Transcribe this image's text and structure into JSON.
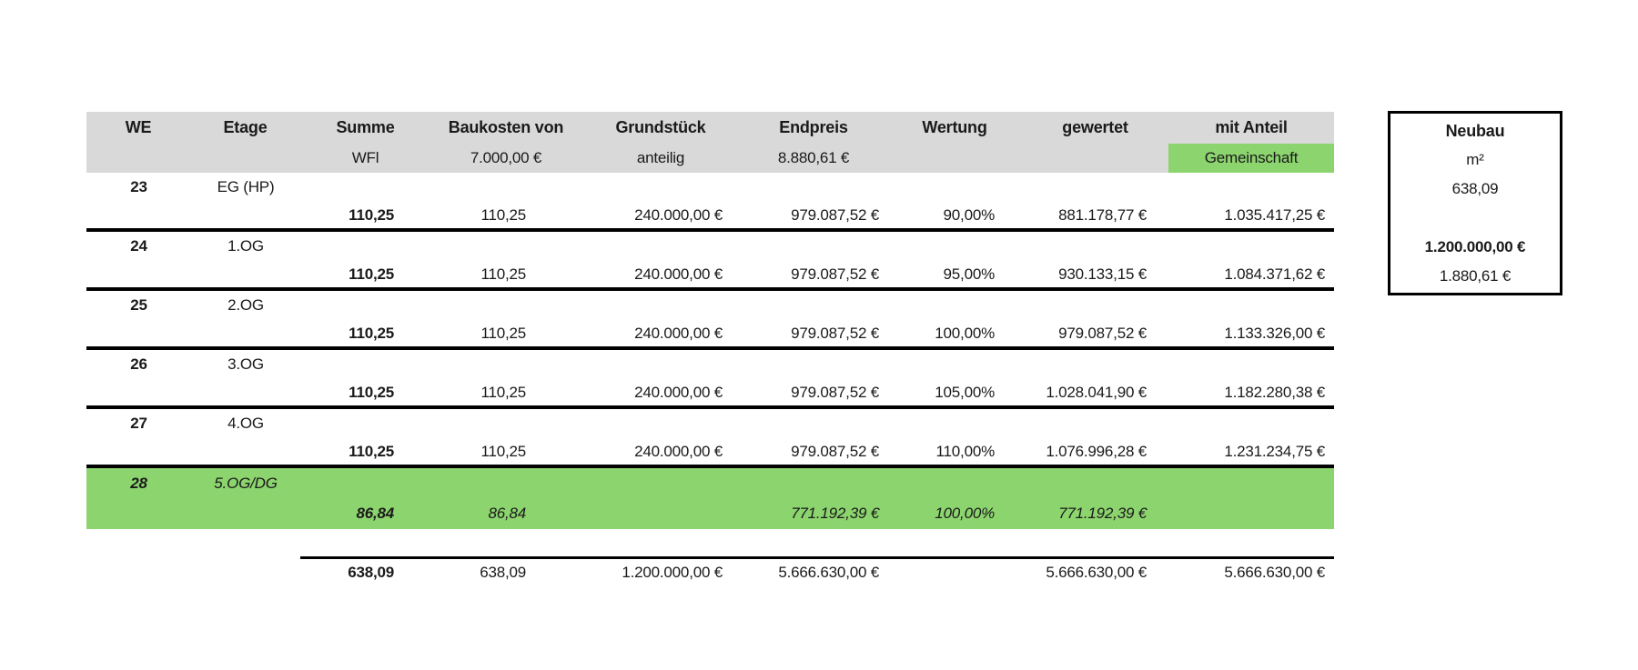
{
  "table": {
    "header": {
      "cols": [
        {
          "label": "WE",
          "sub": ""
        },
        {
          "label": "Etage",
          "sub": ""
        },
        {
          "label": "Summe",
          "sub": "WFl"
        },
        {
          "label": "Baukosten von",
          "sub": "7.000,00 €"
        },
        {
          "label": "Grundstück",
          "sub": "anteilig"
        },
        {
          "label": "Endpreis",
          "sub": "8.880,61 €"
        },
        {
          "label": "Wertung",
          "sub": ""
        },
        {
          "label": "gewertet",
          "sub": ""
        },
        {
          "label": "mit Anteil",
          "sub": "Gemeinschaft"
        }
      ]
    },
    "rows": [
      {
        "we": "23",
        "etage": "EG (HP)",
        "summe": "110,25",
        "baukosten": "110,25",
        "grundstueck": "240.000,00 €",
        "endpreis": "979.087,52 €",
        "wertung": "90,00%",
        "gewertet": "881.178,77 €",
        "mit_anteil": "1.035.417,25 €"
      },
      {
        "we": "24",
        "etage": "1.OG",
        "summe": "110,25",
        "baukosten": "110,25",
        "grundstueck": "240.000,00 €",
        "endpreis": "979.087,52 €",
        "wertung": "95,00%",
        "gewertet": "930.133,15 €",
        "mit_anteil": "1.084.371,62 €"
      },
      {
        "we": "25",
        "etage": "2.OG",
        "summe": "110,25",
        "baukosten": "110,25",
        "grundstueck": "240.000,00 €",
        "endpreis": "979.087,52 €",
        "wertung": "100,00%",
        "gewertet": "979.087,52 €",
        "mit_anteil": "1.133.326,00 €"
      },
      {
        "we": "26",
        "etage": "3.OG",
        "summe": "110,25",
        "baukosten": "110,25",
        "grundstueck": "240.000,00 €",
        "endpreis": "979.087,52 €",
        "wertung": "105,00%",
        "gewertet": "1.028.041,90 €",
        "mit_anteil": "1.182.280,38 €"
      },
      {
        "we": "27",
        "etage": "4.OG",
        "summe": "110,25",
        "baukosten": "110,25",
        "grundstueck": "240.000,00 €",
        "endpreis": "979.087,52 €",
        "wertung": "110,00%",
        "gewertet": "1.076.996,28 €",
        "mit_anteil": "1.231.234,75 €"
      },
      {
        "we": "28",
        "etage": "5.OG/DG",
        "summe": "86,84",
        "baukosten": "86,84",
        "grundstueck": "",
        "endpreis": "771.192,39 €",
        "wertung": "100,00%",
        "gewertet": "771.192,39 €",
        "mit_anteil": ""
      }
    ],
    "totals": {
      "summe": "638,09",
      "baukosten": "638,09",
      "grundstueck": "1.200.000,00 €",
      "endpreis": "5.666.630,00 €",
      "wertung": "",
      "gewertet": "5.666.630,00 €",
      "mit_anteil": "5.666.630,00 €"
    }
  },
  "side_box": {
    "title": "Neubau",
    "unit": "m²",
    "area": "638,09",
    "total_price": "1.200.000,00 €",
    "price_per_sqm": "1.880,61 €"
  },
  "colors": {
    "header_bg": "#d9d9d9",
    "highlight_green": "#8cd46e",
    "line": "#000000",
    "text": "#1a1a1a"
  }
}
